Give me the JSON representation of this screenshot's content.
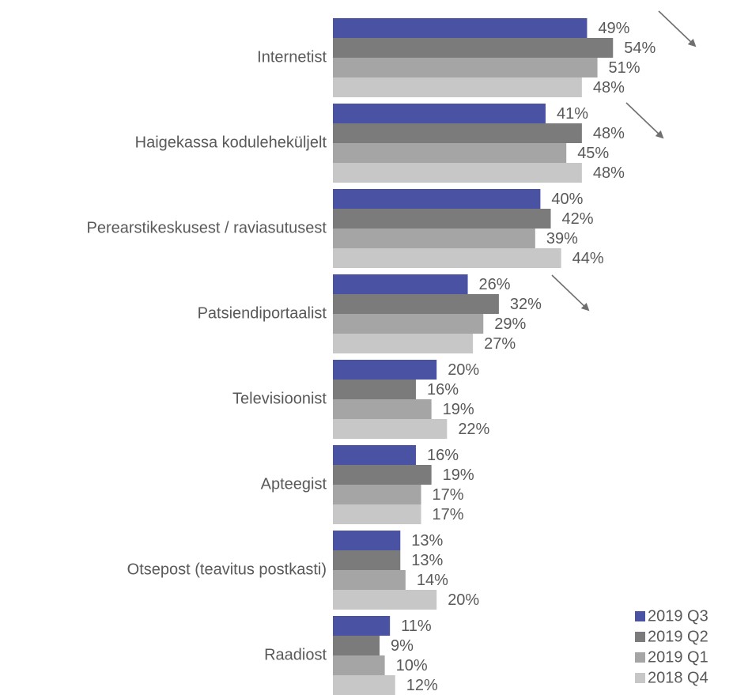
{
  "chart_data": {
    "type": "bar",
    "orientation": "horizontal",
    "categories": [
      "Internetist",
      "Haigekassa koduleheküljelt",
      "Perearstikeskusest / raviasutusest",
      "Patsiendiportaalist",
      "Televisioonist",
      "Apteegist",
      "Otsepost (teavitus postkasti)",
      "Raadiost"
    ],
    "series": [
      {
        "name": "2019 Q3",
        "color": "#4a52a3",
        "values": [
          49,
          41,
          40,
          26,
          20,
          16,
          13,
          11
        ],
        "value_labels": [
          "49%",
          "41%",
          "40%",
          "26%",
          "20%",
          "16%",
          "13%",
          "11%"
        ]
      },
      {
        "name": "2019 Q2",
        "color": "#7b7b7b",
        "values": [
          54,
          48,
          42,
          32,
          16,
          19,
          13,
          9
        ],
        "value_labels": [
          "54%",
          "48%",
          "42%",
          "32%",
          "16%",
          "19%",
          "13%",
          "9%"
        ]
      },
      {
        "name": "2019 Q1",
        "color": "#a5a5a5",
        "values": [
          51,
          45,
          39,
          29,
          19,
          17,
          14,
          10
        ],
        "value_labels": [
          "51%",
          "45%",
          "39%",
          "29%",
          "19%",
          "17%",
          "14%",
          "10%"
        ]
      },
      {
        "name": "2018 Q4",
        "color": "#c7c7c7",
        "values": [
          48,
          48,
          44,
          27,
          22,
          17,
          20,
          12
        ],
        "value_labels": [
          "48%",
          "48%",
          "44%",
          "27%",
          "22%",
          "17%",
          "20%",
          "12%"
        ]
      }
    ],
    "xlim": [
      0,
      60
    ],
    "legend": "bottom-right"
  }
}
